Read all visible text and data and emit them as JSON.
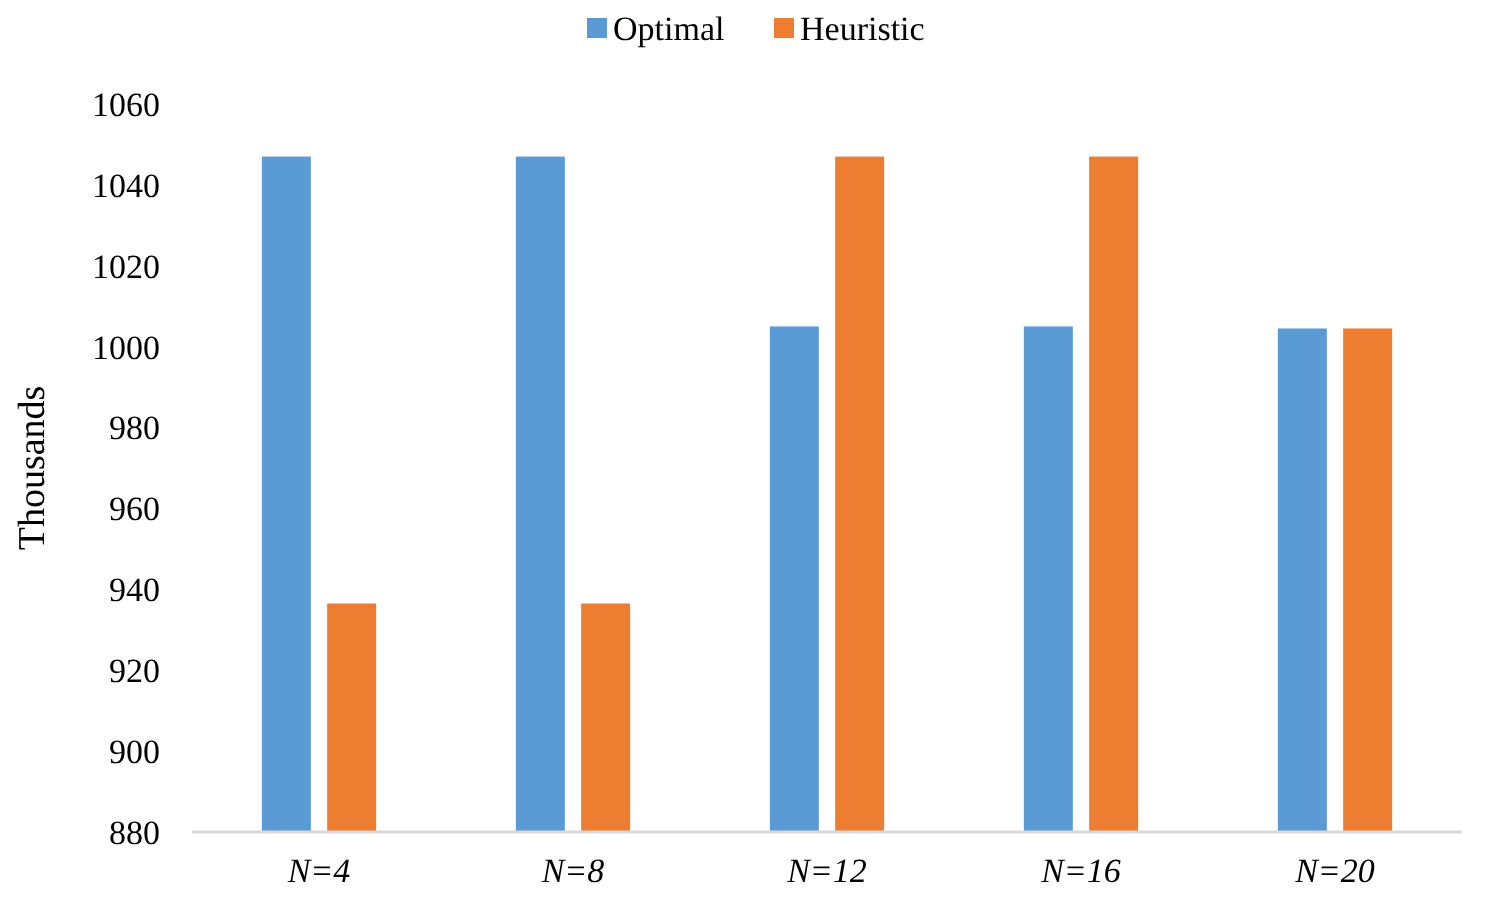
{
  "chart_data": {
    "type": "bar",
    "ylabel": "Thousands",
    "categories": [
      "N=4",
      "N=8",
      "N=12",
      "N=16",
      "N=20"
    ],
    "series": [
      {
        "name": "Optimal",
        "color": "#5b9bd5",
        "values": [
          1047,
          1047,
          1005,
          1005,
          1004.5
        ]
      },
      {
        "name": "Heuristic",
        "color": "#ed7d31",
        "values": [
          936.5,
          936.5,
          1047,
          1047,
          1004.5
        ]
      }
    ],
    "ylim": [
      880,
      1060
    ],
    "yticks": [
      880,
      900,
      920,
      940,
      960,
      980,
      1000,
      1020,
      1040,
      1060
    ],
    "grid": false,
    "legend": "top"
  }
}
